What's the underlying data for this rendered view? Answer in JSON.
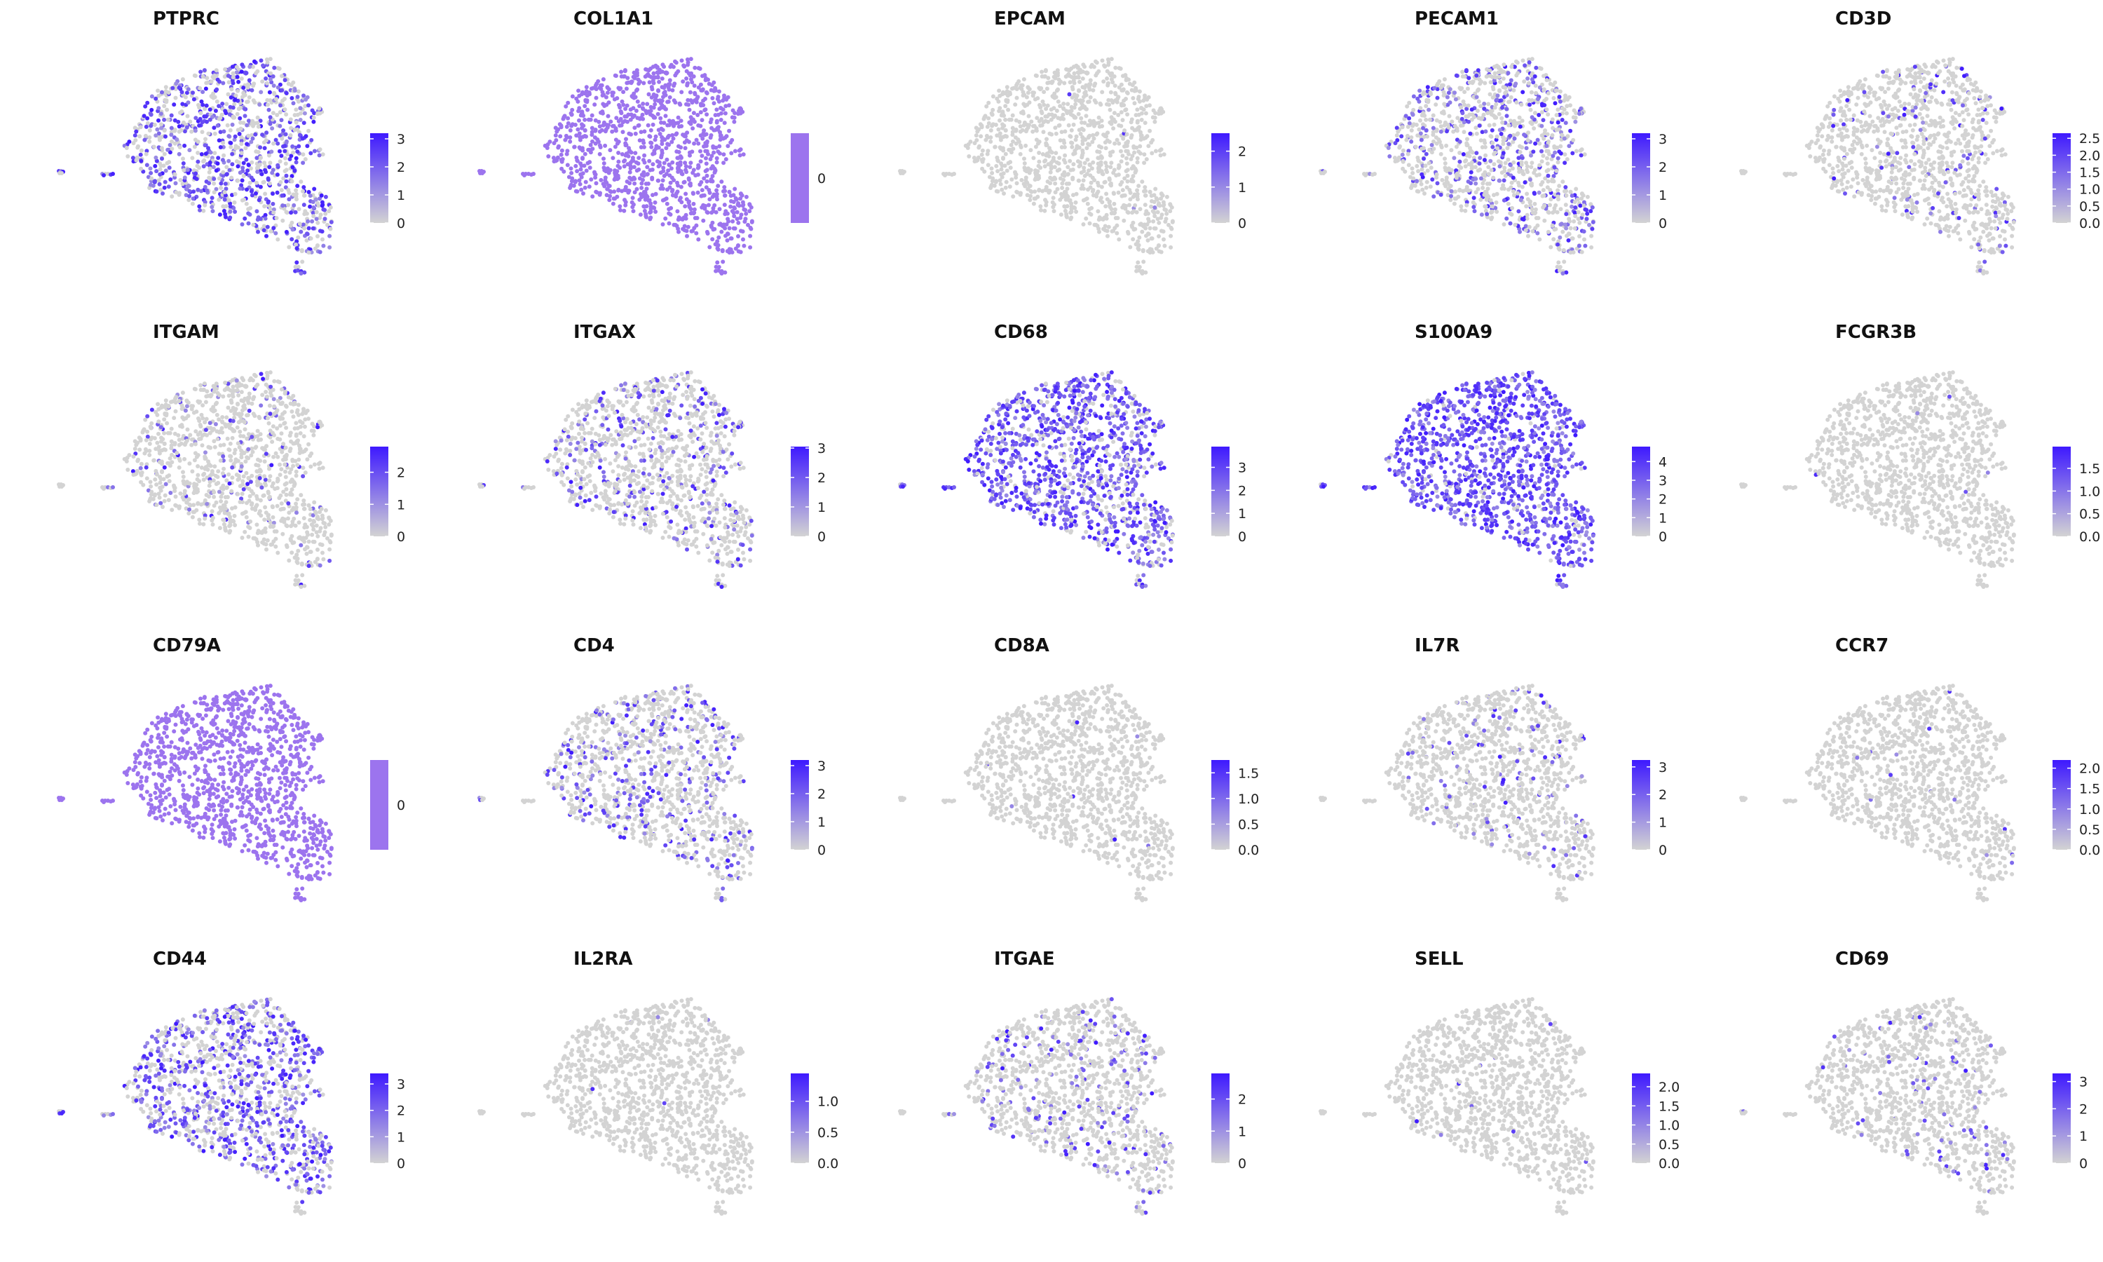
{
  "figure": {
    "type": "feature-plot-grid",
    "layout": {
      "rows": 4,
      "cols": 5
    },
    "colors": {
      "low": "#d3d3d3",
      "high": "#3e19ff",
      "uniform": "#9c74ee",
      "text": "#222222"
    }
  },
  "chart_data": [
    {
      "type": "scatter",
      "title": "PTPRC",
      "expression_level": 0.55,
      "colorbar": {
        "max": 3.2,
        "ticks": [
          0,
          1,
          2,
          3
        ],
        "labels": [
          "0",
          "1",
          "2",
          "3"
        ]
      }
    },
    {
      "type": "scatter",
      "title": "COL1A1",
      "expression_level": 1.0,
      "uniform": true,
      "colorbar": {
        "max": 0,
        "ticks": [
          0
        ],
        "labels": [
          "0"
        ]
      }
    },
    {
      "type": "scatter",
      "title": "EPCAM",
      "expression_level": 0.003,
      "colorbar": {
        "max": 2.5,
        "ticks": [
          0,
          1,
          2
        ],
        "labels": [
          "0",
          "1",
          "2"
        ]
      }
    },
    {
      "type": "scatter",
      "title": "PECAM1",
      "expression_level": 0.35,
      "colorbar": {
        "max": 3.2,
        "ticks": [
          0,
          1,
          2,
          3
        ],
        "labels": [
          "0",
          "1",
          "2",
          "3"
        ]
      }
    },
    {
      "type": "scatter",
      "title": "CD3D",
      "expression_level": 0.09,
      "colorbar": {
        "max": 2.65,
        "ticks": [
          0,
          0.5,
          1,
          1.5,
          2,
          2.5
        ],
        "labels": [
          "0.0",
          "0.5",
          "1.0",
          "1.5",
          "2.0",
          "2.5"
        ]
      }
    },
    {
      "type": "scatter",
      "title": "ITGAM",
      "expression_level": 0.09,
      "colorbar": {
        "max": 2.8,
        "ticks": [
          0,
          1,
          2
        ],
        "labels": [
          "0",
          "1",
          "2"
        ]
      }
    },
    {
      "type": "scatter",
      "title": "ITGAX",
      "expression_level": 0.2,
      "colorbar": {
        "max": 3.05,
        "ticks": [
          0,
          1,
          2,
          3
        ],
        "labels": [
          "0",
          "1",
          "2",
          "3"
        ]
      }
    },
    {
      "type": "scatter",
      "title": "CD68",
      "expression_level": 0.8,
      "colorbar": {
        "max": 3.9,
        "ticks": [
          0,
          1,
          2,
          3
        ],
        "labels": [
          "0",
          "1",
          "2",
          "3"
        ]
      }
    },
    {
      "type": "scatter",
      "title": "S100A9",
      "expression_level": 0.93,
      "colorbar": {
        "max": 4.8,
        "ticks": [
          0,
          1,
          2,
          3,
          4
        ],
        "labels": [
          "0",
          "1",
          "2",
          "3",
          "4"
        ]
      }
    },
    {
      "type": "scatter",
      "title": "FCGR3B",
      "expression_level": 0.005,
      "colorbar": {
        "max": 1.98,
        "ticks": [
          0,
          0.5,
          1,
          1.5
        ],
        "labels": [
          "0.0",
          "0.5",
          "1.0",
          "1.5"
        ]
      }
    },
    {
      "type": "scatter",
      "title": "CD79A",
      "expression_level": 1.0,
      "uniform": true,
      "colorbar": {
        "max": 0,
        "ticks": [
          0
        ],
        "labels": [
          "0"
        ]
      }
    },
    {
      "type": "scatter",
      "title": "CD4",
      "expression_level": 0.25,
      "colorbar": {
        "max": 3.2,
        "ticks": [
          0,
          1,
          2,
          3
        ],
        "labels": [
          "0",
          "1",
          "2",
          "3"
        ]
      }
    },
    {
      "type": "scatter",
      "title": "CD8A",
      "expression_level": 0.004,
      "colorbar": {
        "max": 1.75,
        "ticks": [
          0,
          0.5,
          1,
          1.5
        ],
        "labels": [
          "0.0",
          "0.5",
          "1.0",
          "1.5"
        ]
      }
    },
    {
      "type": "scatter",
      "title": "IL7R",
      "expression_level": 0.08,
      "colorbar": {
        "max": 3.25,
        "ticks": [
          0,
          1,
          2,
          3
        ],
        "labels": [
          "0",
          "1",
          "2",
          "3"
        ]
      }
    },
    {
      "type": "scatter",
      "title": "CCR7",
      "expression_level": 0.004,
      "colorbar": {
        "max": 2.2,
        "ticks": [
          0,
          0.5,
          1,
          1.5,
          2
        ],
        "labels": [
          "0.0",
          "0.5",
          "1.0",
          "1.5",
          "2.0"
        ]
      }
    },
    {
      "type": "scatter",
      "title": "CD44",
      "expression_level": 0.5,
      "colorbar": {
        "max": 3.4,
        "ticks": [
          0,
          1,
          2,
          3
        ],
        "labels": [
          "0",
          "1",
          "2",
          "3"
        ]
      }
    },
    {
      "type": "scatter",
      "title": "IL2RA",
      "expression_level": 0.004,
      "colorbar": {
        "max": 1.45,
        "ticks": [
          0,
          0.5,
          1
        ],
        "labels": [
          "0.0",
          "0.5",
          "1.0"
        ]
      }
    },
    {
      "type": "scatter",
      "title": "ITGAE",
      "expression_level": 0.14,
      "colorbar": {
        "max": 2.8,
        "ticks": [
          0,
          1,
          2
        ],
        "labels": [
          "0",
          "1",
          "2"
        ]
      }
    },
    {
      "type": "scatter",
      "title": "SELL",
      "expression_level": 0.01,
      "colorbar": {
        "max": 2.35,
        "ticks": [
          0,
          0.5,
          1,
          1.5,
          2
        ],
        "labels": [
          "0.0",
          "0.5",
          "1.0",
          "1.5",
          "2.0"
        ]
      }
    },
    {
      "type": "scatter",
      "title": "CD69",
      "expression_level": 0.05,
      "colorbar": {
        "max": 3.3,
        "ticks": [
          0,
          1,
          2,
          3
        ],
        "labels": [
          "0",
          "1",
          "2",
          "3"
        ]
      }
    }
  ]
}
